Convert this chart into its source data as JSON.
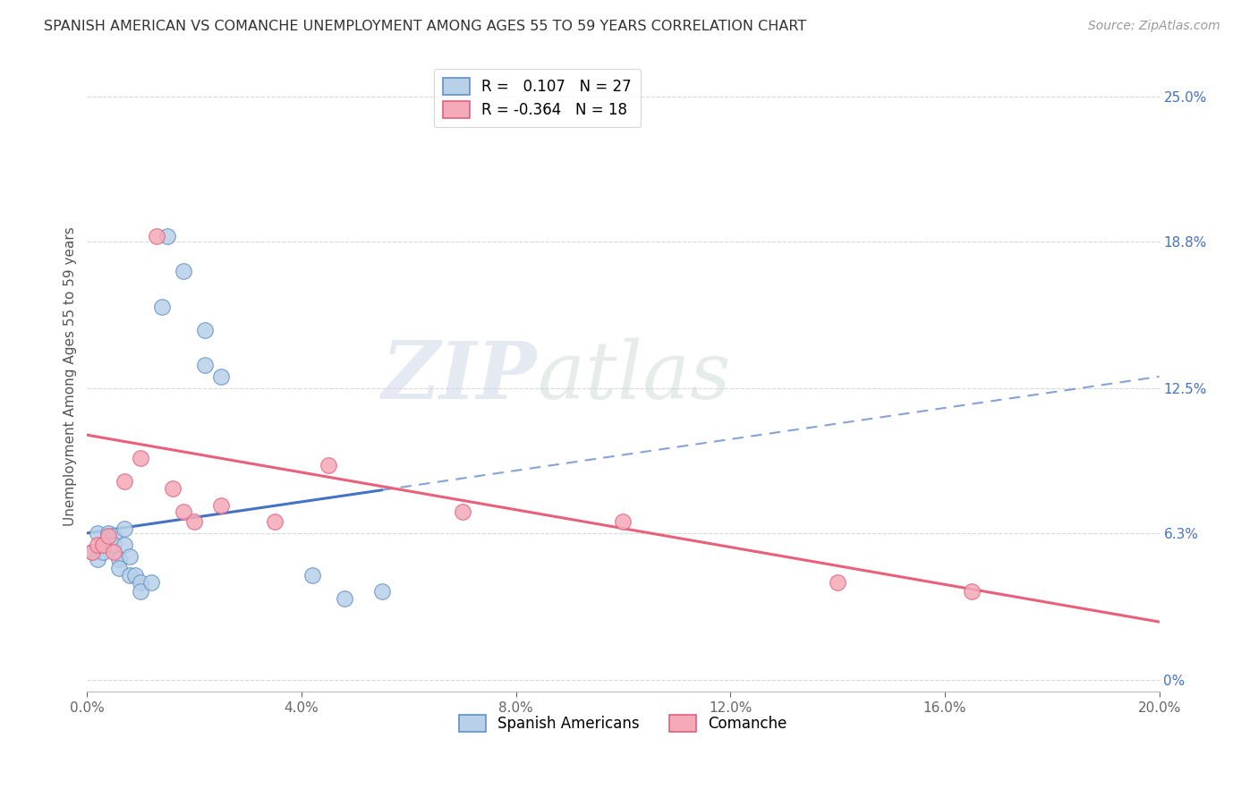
{
  "title": "SPANISH AMERICAN VS COMANCHE UNEMPLOYMENT AMONG AGES 55 TO 59 YEARS CORRELATION CHART",
  "source": "Source: ZipAtlas.com",
  "ylabel_label": "Unemployment Among Ages 55 to 59 years",
  "xmin": 0.0,
  "xmax": 0.2,
  "ymin": -0.005,
  "ymax": 0.265,
  "blue_R": 0.107,
  "blue_N": 27,
  "pink_R": -0.364,
  "pink_N": 18,
  "blue_fill_color": "#b8d0e8",
  "pink_fill_color": "#f4aab8",
  "blue_edge_color": "#6090c8",
  "pink_edge_color": "#e06080",
  "blue_line_color": "#4472c4",
  "pink_line_color": "#e8607a",
  "blue_line_solid_end": 0.055,
  "blue_line_start_x": 0.0,
  "blue_line_start_y": 0.063,
  "blue_line_end_x": 0.2,
  "blue_line_end_y": 0.13,
  "pink_line_start_x": 0.0,
  "pink_line_start_y": 0.105,
  "pink_line_end_x": 0.2,
  "pink_line_end_y": 0.025,
  "blue_points": [
    [
      0.001,
      0.055
    ],
    [
      0.002,
      0.052
    ],
    [
      0.002,
      0.063
    ],
    [
      0.003,
      0.058
    ],
    [
      0.003,
      0.055
    ],
    [
      0.004,
      0.063
    ],
    [
      0.005,
      0.062
    ],
    [
      0.005,
      0.058
    ],
    [
      0.006,
      0.052
    ],
    [
      0.006,
      0.048
    ],
    [
      0.007,
      0.058
    ],
    [
      0.007,
      0.065
    ],
    [
      0.008,
      0.053
    ],
    [
      0.008,
      0.045
    ],
    [
      0.009,
      0.045
    ],
    [
      0.01,
      0.042
    ],
    [
      0.01,
      0.038
    ],
    [
      0.012,
      0.042
    ],
    [
      0.014,
      0.16
    ],
    [
      0.015,
      0.19
    ],
    [
      0.018,
      0.175
    ],
    [
      0.022,
      0.15
    ],
    [
      0.022,
      0.135
    ],
    [
      0.025,
      0.13
    ],
    [
      0.042,
      0.045
    ],
    [
      0.048,
      0.035
    ],
    [
      0.055,
      0.038
    ]
  ],
  "pink_points": [
    [
      0.001,
      0.055
    ],
    [
      0.002,
      0.058
    ],
    [
      0.003,
      0.058
    ],
    [
      0.004,
      0.062
    ],
    [
      0.005,
      0.055
    ],
    [
      0.007,
      0.085
    ],
    [
      0.01,
      0.095
    ],
    [
      0.013,
      0.19
    ],
    [
      0.016,
      0.082
    ],
    [
      0.018,
      0.072
    ],
    [
      0.02,
      0.068
    ],
    [
      0.025,
      0.075
    ],
    [
      0.035,
      0.068
    ],
    [
      0.045,
      0.092
    ],
    [
      0.07,
      0.072
    ],
    [
      0.1,
      0.068
    ],
    [
      0.14,
      0.042
    ],
    [
      0.165,
      0.038
    ]
  ],
  "watermark_zip": "ZIP",
  "watermark_atlas": "atlas",
  "legend_blue_label": "Spanish Americans",
  "legend_pink_label": "Comanche",
  "background_color": "#ffffff",
  "grid_color": "#d8d8d8",
  "right_ytick_vals": [
    0.0,
    0.063,
    0.125,
    0.188,
    0.25
  ],
  "right_ytick_labels": [
    "0%",
    "6.3%",
    "12.5%",
    "18.8%",
    "25.0%"
  ]
}
